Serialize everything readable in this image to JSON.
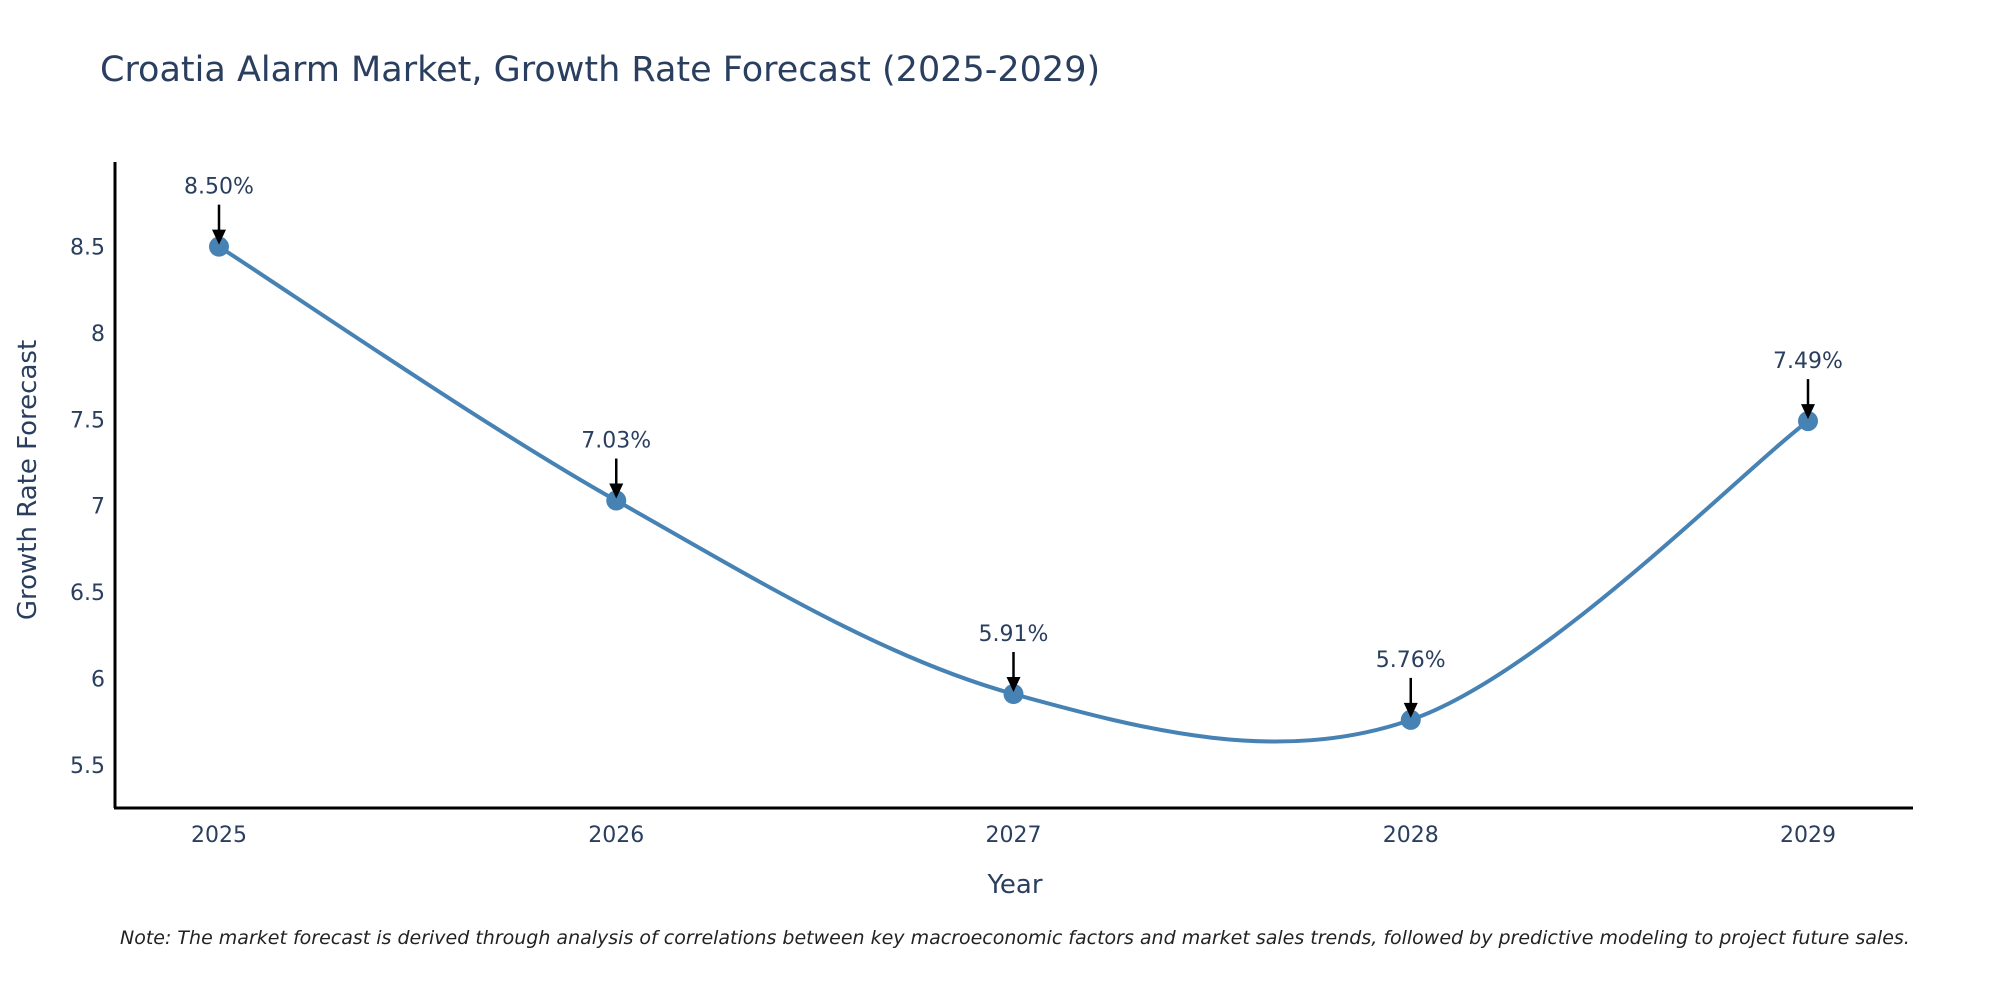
{
  "chart_data": {
    "type": "line",
    "title": "Croatia Alarm Market, Growth Rate Forecast (2025-2029)",
    "xlabel": "Year",
    "ylabel": "Growth Rate Forecast",
    "categories": [
      "2025",
      "2026",
      "2027",
      "2028",
      "2029"
    ],
    "series": [
      {
        "name": "Growth Rate Forecast",
        "values": [
          8.5,
          7.03,
          5.91,
          5.76,
          7.49
        ],
        "labels": [
          "8.50%",
          "7.03%",
          "5.91%",
          "5.76%",
          "7.49%"
        ],
        "color": "#4682b4"
      }
    ],
    "y_ticks": [
      "5.5",
      "6",
      "6.5",
      "7",
      "7.5",
      "8",
      "8.5"
    ],
    "y_tick_values": [
      5.5,
      6,
      6.5,
      7,
      7.5,
      8,
      8.5
    ],
    "ylim": [
      5.25,
      8.99
    ],
    "grid": false,
    "line_shape": "spline"
  },
  "note": "Note: The market forecast is derived through analysis of correlations between key macroeconomic factors and market sales trends, followed by predictive modeling to project future sales.",
  "colors": {
    "line": "#4682b4",
    "text": "#2a3f5f",
    "axis": "#000000",
    "arrow": "#000000"
  }
}
